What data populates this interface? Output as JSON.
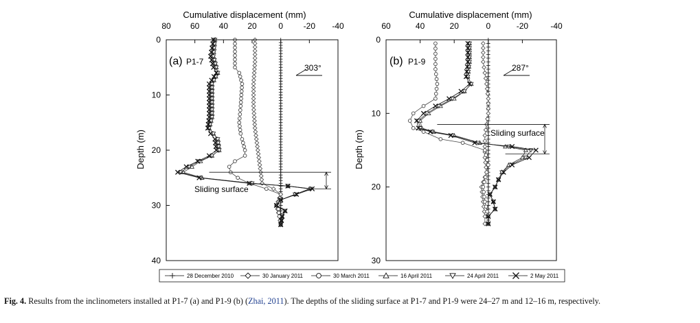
{
  "figure": {
    "caption_label": "Fig. 4.",
    "caption_pre": " Results from the inclinometers installed at P1-7 (a) and P1-9 (b) (",
    "caption_cite": "Zhai, 2011",
    "caption_post": "). The depths of the sliding surface at P1-7 and P1-9 were 24–27 m and 12–16 m, respectively."
  },
  "legend": {
    "entries": [
      {
        "label": "28 December 2010",
        "marker": "plus"
      },
      {
        "label": "30 January 2011",
        "marker": "diamond"
      },
      {
        "label": "30 March 2011",
        "marker": "circle"
      },
      {
        "label": "16 April 2011",
        "marker": "triangle-up"
      },
      {
        "label": "24 April 2011",
        "marker": "triangle-down"
      },
      {
        "label": "2 May 2011",
        "marker": "cross"
      }
    ]
  },
  "chart_data": [
    {
      "type": "line",
      "panel_label": "(a)",
      "station": "P1-7",
      "title": "Cumulative displacement (mm)",
      "xlabel": "Cumulative displacement (mm)",
      "ylabel": "Depth (m)",
      "xlim": [
        80,
        -40
      ],
      "ylim": [
        0,
        40
      ],
      "xticks": [
        80,
        60,
        40,
        20,
        0,
        -20,
        -40
      ],
      "yticks": [
        0,
        10,
        20,
        30,
        40
      ],
      "direction_annotation": "303°",
      "sliding_surface_label": "Sliding surface",
      "sliding_surface_depth": [
        24,
        27
      ],
      "series": [
        {
          "name": "28 December 2010",
          "marker": "plus",
          "points": [
            [
              0,
              0
            ],
            [
              0,
              2
            ],
            [
              0,
              4
            ],
            [
              0,
              6
            ],
            [
              0,
              8
            ],
            [
              0,
              10
            ],
            [
              0,
              12
            ],
            [
              0,
              14
            ],
            [
              0,
              16
            ],
            [
              0,
              18
            ],
            [
              0,
              20
            ],
            [
              0,
              22
            ],
            [
              0,
              24
            ],
            [
              0,
              26
            ],
            [
              0,
              28
            ],
            [
              0,
              30
            ],
            [
              0,
              32
            ],
            [
              0,
              33.5
            ]
          ]
        },
        {
          "name": "30 January 2011",
          "marker": "diamond",
          "points": [
            [
              18,
              0
            ],
            [
              18,
              4
            ],
            [
              19,
              8
            ],
            [
              19,
              12
            ],
            [
              18,
              16
            ],
            [
              17,
              18
            ],
            [
              16,
              20
            ],
            [
              15,
              22
            ],
            [
              14,
              24
            ],
            [
              13,
              26
            ],
            [
              5,
              27
            ],
            [
              0,
              28
            ],
            [
              3,
              30
            ],
            [
              1,
              32
            ],
            [
              0,
              33.5
            ]
          ]
        },
        {
          "name": "30 March 2011",
          "marker": "circle",
          "points": [
            [
              32,
              0
            ],
            [
              32,
              5
            ],
            [
              29,
              6
            ],
            [
              27,
              8
            ],
            [
              28,
              12
            ],
            [
              29,
              15
            ],
            [
              28,
              17
            ],
            [
              27,
              18
            ],
            [
              25,
              20
            ],
            [
              25,
              21
            ],
            [
              32,
              22
            ],
            [
              36,
              23
            ],
            [
              35,
              24
            ],
            [
              30,
              25
            ],
            [
              22,
              26
            ],
            [
              10,
              27
            ],
            [
              0,
              28
            ],
            [
              2,
              30
            ],
            [
              1,
              32
            ],
            [
              0,
              33.5
            ]
          ]
        },
        {
          "name": "16 April 2011",
          "marker": "triangle-up",
          "points": [
            [
              46,
              0
            ],
            [
              47,
              3
            ],
            [
              45,
              5
            ],
            [
              44,
              6
            ],
            [
              48,
              8
            ],
            [
              48,
              14
            ],
            [
              50,
              16
            ],
            [
              47,
              17
            ],
            [
              44,
              18
            ],
            [
              43,
              20
            ],
            [
              48,
              21
            ],
            [
              56,
              22
            ],
            [
              62,
              23
            ],
            [
              68,
              24
            ],
            [
              55,
              25
            ],
            [
              20,
              26
            ],
            [
              -5,
              26.5
            ],
            [
              -20,
              27
            ],
            [
              -10,
              28
            ],
            [
              0,
              29
            ],
            [
              3,
              30
            ],
            [
              -3,
              31
            ],
            [
              -1,
              32
            ],
            [
              0,
              33.5
            ]
          ]
        },
        {
          "name": "24 April 2011",
          "marker": "triangle-down",
          "points": [
            [
              46,
              0
            ],
            [
              47,
              3
            ],
            [
              45,
              5
            ],
            [
              44,
              6
            ],
            [
              48,
              8
            ],
            [
              48,
              14
            ],
            [
              50,
              16
            ],
            [
              47,
              17
            ],
            [
              44,
              18
            ],
            [
              43,
              20
            ],
            [
              48,
              21
            ],
            [
              57,
              22
            ],
            [
              64,
              23
            ],
            [
              70,
              24
            ],
            [
              56,
              25
            ],
            [
              20,
              26
            ],
            [
              -5,
              26.5
            ],
            [
              -21,
              27
            ],
            [
              -10,
              28
            ],
            [
              0,
              29
            ],
            [
              3,
              30
            ],
            [
              -3,
              31
            ],
            [
              -1,
              32
            ],
            [
              0,
              33.5
            ]
          ]
        },
        {
          "name": "2 May 2011",
          "marker": "cross",
          "points": [
            [
              47,
              0
            ],
            [
              49,
              3
            ],
            [
              47,
              5
            ],
            [
              45,
              6
            ],
            [
              50,
              8
            ],
            [
              50,
              14
            ],
            [
              51,
              16
            ],
            [
              49,
              17
            ],
            [
              46,
              18
            ],
            [
              45,
              20
            ],
            [
              50,
              21
            ],
            [
              58,
              22
            ],
            [
              66,
              23
            ],
            [
              72,
              24
            ],
            [
              57,
              25
            ],
            [
              22,
              26
            ],
            [
              -5,
              26.5
            ],
            [
              -22,
              27
            ],
            [
              -11,
              28
            ],
            [
              0,
              29
            ],
            [
              3,
              30
            ],
            [
              -3,
              31
            ],
            [
              -1,
              32
            ],
            [
              0,
              33.5
            ]
          ]
        }
      ]
    },
    {
      "type": "line",
      "panel_label": "(b)",
      "station": "P1-9",
      "title": "Cumulative displacement (mm)",
      "xlabel": "Cumulative displacement (mm)",
      "ylabel": "Depth (m)",
      "xlim": [
        60,
        -40
      ],
      "ylim": [
        0,
        30
      ],
      "xticks": [
        60,
        40,
        20,
        0,
        -20,
        -40
      ],
      "yticks": [
        0,
        10,
        20,
        30
      ],
      "direction_annotation": "287°",
      "sliding_surface_label": "Sliding surface",
      "sliding_surface_depth": [
        11.5,
        15.5
      ],
      "series": [
        {
          "name": "28 December 2010",
          "marker": "plus",
          "points": [
            [
              0,
              0
            ],
            [
              0,
              2
            ],
            [
              0,
              4
            ],
            [
              0,
              6
            ],
            [
              0,
              8
            ],
            [
              0,
              10
            ],
            [
              0,
              12
            ],
            [
              0,
              14
            ],
            [
              0,
              16
            ],
            [
              0,
              18
            ],
            [
              0,
              20
            ],
            [
              0,
              22
            ],
            [
              0,
              24
            ],
            [
              0,
              25
            ]
          ]
        },
        {
          "name": "30 January 2011",
          "marker": "diamond",
          "points": [
            [
              3,
              0.5
            ],
            [
              3,
              3
            ],
            [
              1,
              6
            ],
            [
              0,
              8
            ],
            [
              0,
              10
            ],
            [
              2,
              13
            ],
            [
              2,
              16
            ],
            [
              1,
              18
            ],
            [
              4,
              20
            ],
            [
              3,
              22
            ],
            [
              2,
              24
            ],
            [
              2,
              25
            ]
          ]
        },
        {
          "name": "30 March 2011",
          "marker": "circle",
          "points": [
            [
              31,
              0.5
            ],
            [
              31,
              4
            ],
            [
              30,
              6
            ],
            [
              31,
              8
            ],
            [
              38,
              9
            ],
            [
              44,
              10
            ],
            [
              46,
              11
            ],
            [
              44,
              12
            ],
            [
              38,
              12.5
            ],
            [
              28,
              13.5
            ],
            [
              15,
              14
            ],
            [
              2,
              15
            ],
            [
              0,
              17
            ],
            [
              1,
              18
            ],
            [
              3,
              20
            ],
            [
              2,
              22
            ],
            [
              0,
              24
            ],
            [
              0,
              25
            ]
          ]
        },
        {
          "name": "16 April 2011",
          "marker": "triangle-up",
          "points": [
            [
              11,
              0.5
            ],
            [
              11,
              3
            ],
            [
              12,
              5
            ],
            [
              10,
              6
            ],
            [
              14,
              7
            ],
            [
              20,
              8
            ],
            [
              28,
              9
            ],
            [
              35,
              10
            ],
            [
              40,
              11
            ],
            [
              39,
              12
            ],
            [
              32,
              12.5
            ],
            [
              20,
              13
            ],
            [
              5,
              14
            ],
            [
              -10,
              14.5
            ],
            [
              -22,
              15
            ],
            [
              -20,
              16
            ],
            [
              -12,
              17
            ],
            [
              -8,
              18
            ],
            [
              -6,
              19
            ],
            [
              -4,
              20
            ],
            [
              -1,
              21
            ],
            [
              -3,
              22
            ],
            [
              -4,
              23
            ],
            [
              0,
              24
            ],
            [
              0,
              25
            ]
          ]
        },
        {
          "name": "24 April 2011",
          "marker": "triangle-down",
          "points": [
            [
              11,
              0.5
            ],
            [
              11,
              3
            ],
            [
              12,
              5
            ],
            [
              10,
              6
            ],
            [
              14,
              7
            ],
            [
              21,
              8
            ],
            [
              29,
              9
            ],
            [
              36,
              10
            ],
            [
              41,
              11
            ],
            [
              40,
              12
            ],
            [
              33,
              12.5
            ],
            [
              21,
              13
            ],
            [
              6,
              14
            ],
            [
              -12,
              14.5
            ],
            [
              -25,
              15
            ],
            [
              -22,
              16
            ],
            [
              -13,
              17
            ],
            [
              -8,
              18
            ],
            [
              -6,
              19
            ],
            [
              -4,
              20
            ],
            [
              -1,
              21
            ],
            [
              -3,
              22
            ],
            [
              -4,
              23
            ],
            [
              0,
              24
            ],
            [
              0,
              25
            ]
          ]
        },
        {
          "name": "2 May 2011",
          "marker": "cross",
          "points": [
            [
              12,
              0.5
            ],
            [
              12,
              3
            ],
            [
              13,
              5
            ],
            [
              11,
              6
            ],
            [
              16,
              7
            ],
            [
              23,
              8
            ],
            [
              31,
              9
            ],
            [
              38,
              10
            ],
            [
              42,
              11
            ],
            [
              41,
              12
            ],
            [
              34,
              12.5
            ],
            [
              22,
              13
            ],
            [
              8,
              14
            ],
            [
              -14,
              14.5
            ],
            [
              -28,
              15
            ],
            [
              -24,
              16
            ],
            [
              -14,
              17
            ],
            [
              -9,
              18
            ],
            [
              -6,
              19
            ],
            [
              -4,
              20
            ],
            [
              -1,
              21
            ],
            [
              -3,
              22
            ],
            [
              -4,
              23
            ],
            [
              0,
              24
            ],
            [
              0,
              25
            ]
          ]
        }
      ]
    }
  ]
}
